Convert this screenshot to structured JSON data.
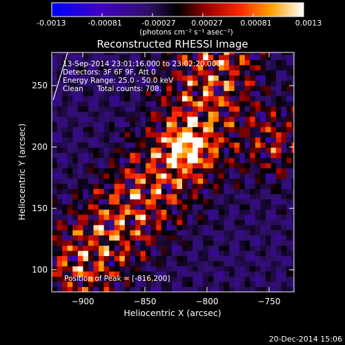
{
  "colorbar": {
    "tick_labels": [
      "-0.0013",
      "-0.00081",
      "-0.00027",
      "0.00027",
      "0.00081",
      "0.0013"
    ],
    "unit_label": "(photons cm⁻² s⁻¹ asec⁻²)",
    "range": [
      -0.0013,
      0.0013
    ]
  },
  "annotations": {
    "time_range": "13-Sep-2014 23:01:16.000 to 23:02:20.000",
    "detectors": "Detectors: 3F 6F 9F, Att 0",
    "energy": "Energy Range: 25.0 - 50.0 keV",
    "clean": "Clean      Total counts: 708.",
    "peak": "Position of Peak = [-816,200]"
  },
  "footer": {
    "timestamp": "20-Dec-2014 15:06"
  },
  "colors": {
    "background": "#000000",
    "text": "#ffffff",
    "peak_color": "#ffff60"
  },
  "chart_data": {
    "type": "heatmap",
    "title": "Reconstructed RHESSI Image",
    "xlabel": "Heliocentric X (arcsec)",
    "ylabel": "Heliocentric Y (arcsec)",
    "xlim": [
      -925,
      -730
    ],
    "ylim": [
      82,
      277
    ],
    "xticks": [
      -900,
      -850,
      -800,
      -750
    ],
    "yticks": [
      100,
      150,
      200,
      250
    ],
    "x_tick_labels": [
      "−900",
      "−850",
      "−800",
      "−750"
    ],
    "y_tick_labels": [
      "100",
      "150",
      "200",
      "250"
    ],
    "peak": [
      -816,
      200
    ],
    "ridge": [
      [
        -790,
        275
      ],
      [
        -816,
        200
      ],
      [
        -860,
        150
      ],
      [
        -900,
        105
      ]
    ],
    "secondary_source": [
      -745,
      205
    ],
    "grid": false,
    "colormap": "rhessi (blue-purple-black-red-orange-yellow-white)"
  }
}
